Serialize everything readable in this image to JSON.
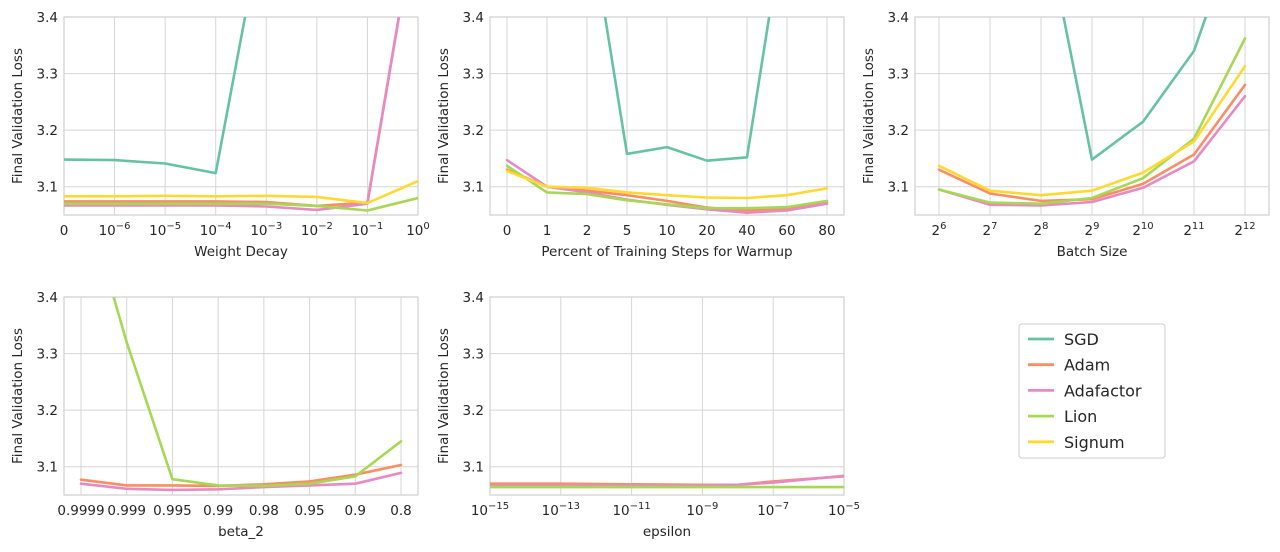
{
  "chart_data": [
    {
      "type": "line",
      "xlabel": "Weight Decay",
      "ylabel": "Final Validation Loss",
      "ylim": [
        3.05,
        3.4
      ],
      "yticks": [
        "3.1",
        "3.2",
        "3.3",
        "3.4"
      ],
      "ytick_values": [
        3.1,
        3.2,
        3.3,
        3.4
      ],
      "x_tick_labels": [
        "0",
        "10^-6",
        "10^-5",
        "10^-4",
        "10^-3",
        "10^-2",
        "10^-1",
        "10^0"
      ],
      "grid": true,
      "series": [
        {
          "name": "SGD",
          "values": [
            3.148,
            3.147,
            3.141,
            3.124,
            3.6,
            null,
            null,
            null
          ]
        },
        {
          "name": "Adam",
          "values": [
            3.074,
            3.074,
            3.074,
            3.074,
            3.073,
            3.066,
            3.072,
            3.6
          ]
        },
        {
          "name": "Adafactor",
          "values": [
            3.067,
            3.067,
            3.067,
            3.067,
            3.065,
            3.059,
            3.07,
            3.6
          ]
        },
        {
          "name": "Lion",
          "values": [
            3.07,
            3.07,
            3.07,
            3.07,
            3.07,
            3.066,
            3.058,
            3.08
          ]
        },
        {
          "name": "Signum",
          "values": [
            3.083,
            3.083,
            3.084,
            3.083,
            3.084,
            3.082,
            3.071,
            3.11
          ]
        }
      ]
    },
    {
      "type": "line",
      "xlabel": "Percent of Training Steps for Warmup",
      "ylabel": "Final Validation Loss",
      "ylim": [
        3.05,
        3.4
      ],
      "yticks": [
        "3.1",
        "3.2",
        "3.3",
        "3.4"
      ],
      "ytick_values": [
        3.1,
        3.2,
        3.3,
        3.4
      ],
      "x_tick_labels": [
        "0",
        "1",
        "2",
        "5",
        "10",
        "20",
        "40",
        "60",
        "80"
      ],
      "grid": true,
      "series": [
        {
          "name": "SGD",
          "values": [
            null,
            null,
            3.6,
            3.158,
            3.17,
            3.146,
            3.152,
            3.6,
            null
          ],
          "segment_break": true
        },
        {
          "name": "Adam",
          "values": [
            3.13,
            3.1,
            3.093,
            3.085,
            3.075,
            3.063,
            3.058,
            3.06,
            3.072
          ]
        },
        {
          "name": "Adafactor",
          "values": [
            3.147,
            3.1,
            3.09,
            3.077,
            3.068,
            3.06,
            3.054,
            3.058,
            3.07
          ]
        },
        {
          "name": "Lion",
          "values": [
            3.137,
            3.09,
            3.087,
            3.076,
            3.069,
            3.062,
            3.062,
            3.064,
            3.075
          ]
        },
        {
          "name": "Signum",
          "values": [
            3.128,
            3.1,
            3.098,
            3.09,
            3.085,
            3.081,
            3.08,
            3.085,
            3.097
          ]
        }
      ]
    },
    {
      "type": "line",
      "xlabel": "Batch Size",
      "ylabel": "Final Validation Loss",
      "ylim": [
        3.05,
        3.4
      ],
      "yticks": [
        "3.1",
        "3.2",
        "3.3",
        "3.4"
      ],
      "ytick_values": [
        3.1,
        3.2,
        3.3,
        3.4
      ],
      "x_tick_labels": [
        "2^6",
        "2^7",
        "2^8",
        "2^9",
        "2^10",
        "2^11",
        "2^12"
      ],
      "grid": true,
      "series": [
        {
          "name": "SGD",
          "values": [
            null,
            null,
            3.6,
            3.148,
            3.215,
            3.34,
            3.6
          ],
          "segment_break": true
        },
        {
          "name": "Adam",
          "values": [
            3.13,
            3.088,
            3.075,
            3.078,
            3.105,
            3.157,
            3.28
          ]
        },
        {
          "name": "Adafactor",
          "values": [
            3.095,
            3.068,
            3.067,
            3.073,
            3.098,
            3.145,
            3.26
          ]
        },
        {
          "name": "Lion",
          "values": [
            3.095,
            3.072,
            3.07,
            3.08,
            3.115,
            3.185,
            3.362
          ]
        },
        {
          "name": "Signum",
          "values": [
            3.137,
            3.093,
            3.085,
            3.093,
            3.125,
            3.18,
            3.313
          ]
        }
      ]
    },
    {
      "type": "line",
      "xlabel": "beta_2",
      "ylabel": "Final Validation Loss",
      "ylim": [
        3.05,
        3.4
      ],
      "yticks": [
        "3.1",
        "3.2",
        "3.3",
        "3.4"
      ],
      "ytick_values": [
        3.1,
        3.2,
        3.3,
        3.4
      ],
      "x_tick_labels": [
        "0.9999",
        "0.999",
        "0.995",
        "0.99",
        "0.98",
        "0.95",
        "0.9",
        "0.8"
      ],
      "grid": true,
      "series": [
        {
          "name": "Adam",
          "values": [
            3.077,
            3.067,
            3.067,
            3.066,
            3.069,
            3.074,
            3.086,
            3.103
          ]
        },
        {
          "name": "Adafactor",
          "values": [
            3.07,
            3.061,
            3.059,
            3.06,
            3.064,
            3.067,
            3.07,
            3.089
          ]
        },
        {
          "name": "Lion",
          "values": [
            3.6,
            3.32,
            3.078,
            3.067,
            3.066,
            3.07,
            3.083,
            3.145
          ]
        }
      ]
    },
    {
      "type": "line",
      "xlabel": "epsilon",
      "ylabel": "Final Validation Loss",
      "ylim": [
        3.05,
        3.4
      ],
      "yticks": [
        "3.1",
        "3.2",
        "3.3",
        "3.4"
      ],
      "ytick_values": [
        3.1,
        3.2,
        3.3,
        3.4
      ],
      "x_tick_labels": [
        "10^-15",
        "10^-13",
        "10^-11",
        "10^-9",
        "10^-7",
        "10^-5"
      ],
      "x_tick_values": [
        -15,
        -13,
        -11,
        -9,
        -7,
        -5
      ],
      "x_scale": "log",
      "grid": true,
      "series": [
        {
          "name": "Adam",
          "x": [
            -15,
            -13,
            -11,
            -9,
            -8,
            -7,
            -5
          ],
          "values": [
            3.07,
            3.07,
            3.069,
            3.068,
            3.068,
            3.074,
            3.083
          ]
        },
        {
          "name": "Adafactor",
          "x": [
            -15,
            -13,
            -11,
            -9,
            -8,
            -7,
            -5
          ],
          "values": [
            3.067,
            3.067,
            3.067,
            3.067,
            3.068,
            3.072,
            3.084
          ]
        },
        {
          "name": "Lion",
          "x": [
            -15,
            -13,
            -11,
            -9,
            -7,
            -5
          ],
          "values": [
            3.064,
            3.064,
            3.064,
            3.064,
            3.064,
            3.064
          ]
        }
      ]
    }
  ],
  "legend": {
    "placement": "right of bottom row",
    "entries": [
      {
        "name": "SGD",
        "color": "#66c2a5"
      },
      {
        "name": "Adam",
        "color": "#fc8d62"
      },
      {
        "name": "Adafactor",
        "color": "#e78ac3"
      },
      {
        "name": "Lion",
        "color": "#a6d854"
      },
      {
        "name": "Signum",
        "color": "#ffd92f"
      }
    ]
  },
  "colors": {
    "SGD": "#66c2a5",
    "Adam": "#fc8d62",
    "Adafactor": "#e78ac3",
    "Lion": "#a6d854",
    "Signum": "#ffd92f"
  }
}
